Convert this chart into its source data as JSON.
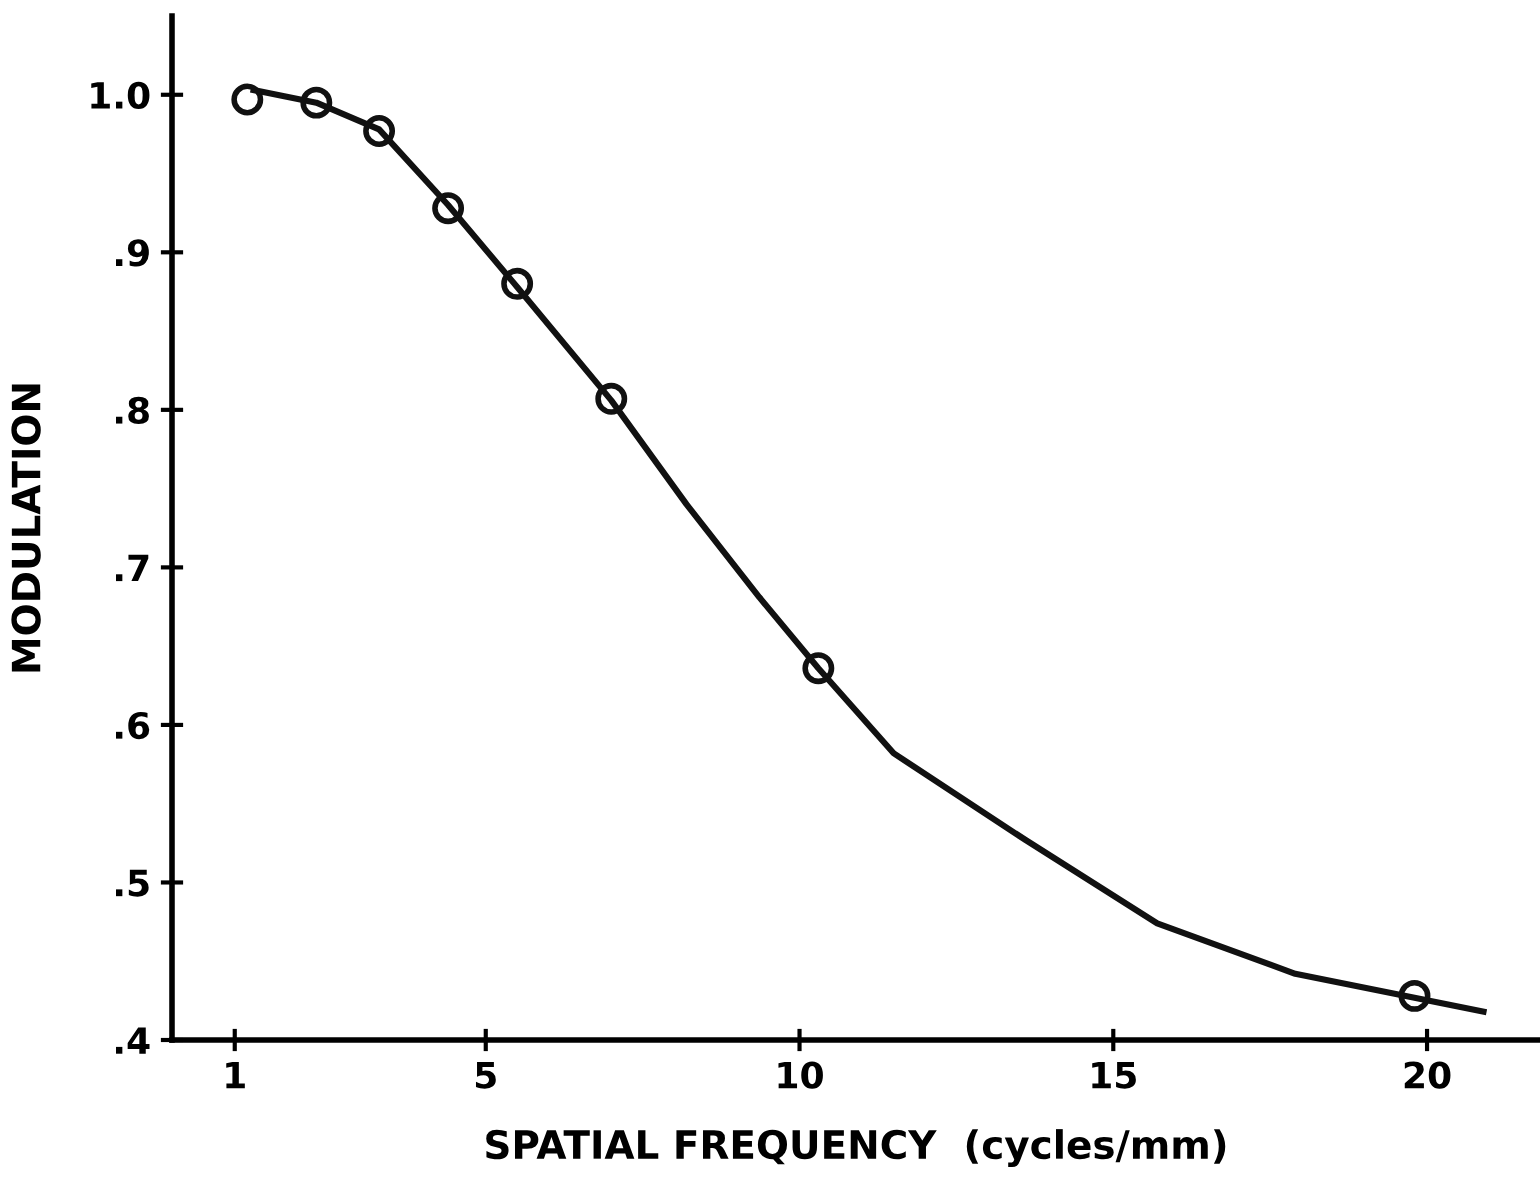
{
  "chart_data": {
    "type": "line",
    "xlabel": "SPATIAL FREQUENCY  (cycles/mm)",
    "ylabel": "MODULATION",
    "xlim": [
      0,
      21.8
    ],
    "ylim": [
      0.4,
      1.05
    ],
    "xticks": [
      1,
      5,
      10,
      15,
      20
    ],
    "yticks": [
      {
        "value": 0.4,
        "label": ".4"
      },
      {
        "value": 0.5,
        "label": ".5"
      },
      {
        "value": 0.6,
        "label": ".6"
      },
      {
        "value": 0.7,
        "label": ".7"
      },
      {
        "value": 0.8,
        "label": ".8"
      },
      {
        "value": 0.9,
        "label": ".9"
      },
      {
        "value": 1.0,
        "label": "1.0"
      }
    ],
    "grid": false,
    "legend": false,
    "series": [
      {
        "color": "#111111",
        "marker": "none",
        "line_style": "solid",
        "x": [
          1.3,
          2.3,
          3.3,
          4.4,
          5.5,
          7.0,
          8.2,
          9.36,
          10.3,
          11.5,
          13.6,
          15.7,
          17.9,
          20.9
        ],
        "values": [
          1.003,
          0.995,
          0.978,
          0.93,
          0.878,
          0.806,
          0.74,
          0.681,
          0.636,
          0.582,
          0.527,
          0.474,
          0.442,
          0.418
        ]
      },
      {
        "type": "scatter",
        "color": "#111111",
        "marker": "circle",
        "x": [
          1.2,
          2.3,
          3.3,
          4.4,
          5.5,
          7.0,
          10.3,
          19.8
        ],
        "values": [
          0.997,
          0.995,
          0.977,
          0.928,
          0.88,
          0.807,
          0.636,
          0.428
        ]
      }
    ]
  }
}
